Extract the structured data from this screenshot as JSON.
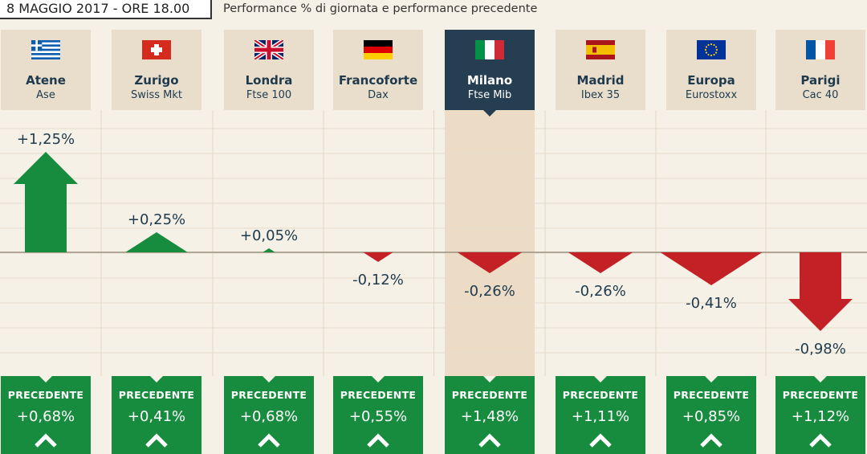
{
  "header": {
    "date": "8 MAGGIO 2017 - ORE 18.00",
    "title": "Performance % di giornata e performance precedente"
  },
  "previous_label": "PRECEDENTE",
  "colors": {
    "up": "#178c3e",
    "down": "#c42127",
    "active_header": "#253e52",
    "header": "#e9decc"
  },
  "chart_data": {
    "type": "bar",
    "categories": [
      "Atene",
      "Zurigo",
      "Londra",
      "Francoforte",
      "Milano",
      "Madrid",
      "Europa",
      "Parigi"
    ],
    "indices": [
      "Ase",
      "Swiss Mkt",
      "Ftse 100",
      "Dax",
      "Ftse Mib",
      "Ibex 35",
      "Eurostoxx",
      "Cac 40"
    ],
    "flags": [
      "greece-flag",
      "switzerland-flag",
      "uk-flag",
      "germany-flag",
      "italy-flag",
      "spain-flag",
      "eu-flag",
      "france-flag"
    ],
    "highlighted": "Milano",
    "series": [
      {
        "name": "Performance % di giornata",
        "values": [
          1.25,
          0.25,
          0.05,
          -0.12,
          -0.26,
          -0.26,
          -0.41,
          -0.98
        ],
        "labels": [
          "+1,25%",
          "+0,25%",
          "+0,05%",
          "-0,12%",
          "-0,26%",
          "-0,26%",
          "-0,41%",
          "-0,98%"
        ]
      },
      {
        "name": "Performance precedente",
        "values": [
          0.68,
          0.41,
          0.68,
          0.55,
          1.48,
          1.11,
          0.85,
          1.12
        ],
        "labels": [
          "+0,68%",
          "+0,41%",
          "+0,68%",
          "+0,55%",
          "+1,48%",
          "+1,11%",
          "+0,85%",
          "+1,12%"
        ]
      }
    ]
  }
}
